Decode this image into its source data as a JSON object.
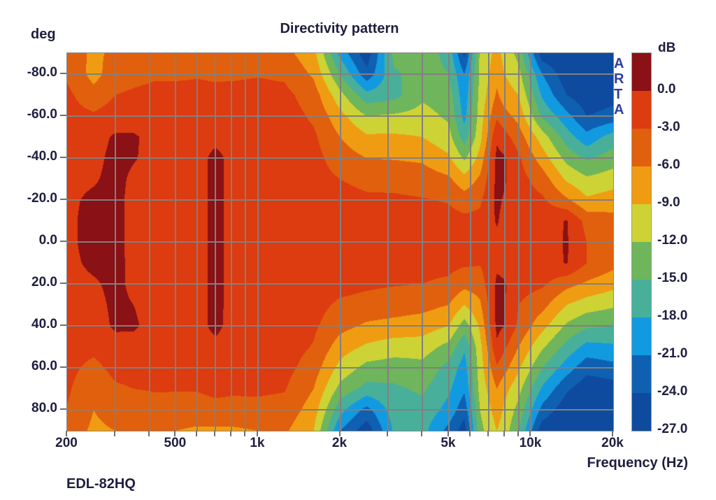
{
  "title": "Directivity pattern",
  "footer": "EDL-82HQ",
  "watermark": "ARTA",
  "y_axis": {
    "label": "deg",
    "ticks": [
      {
        "label": "-80.0",
        "deg": -80
      },
      {
        "label": "-60.0",
        "deg": -60
      },
      {
        "label": "-40.0",
        "deg": -40
      },
      {
        "label": "-20.0",
        "deg": -20
      },
      {
        "label": "0.0",
        "deg": 0
      },
      {
        "label": "20.0",
        "deg": 20
      },
      {
        "label": "40.0",
        "deg": 40
      },
      {
        "label": "60.0",
        "deg": 60
      },
      {
        "label": "80.0",
        "deg": 80
      }
    ]
  },
  "x_axis": {
    "label": "Frequency (Hz)",
    "ticks": [
      {
        "label": "200",
        "hz": 200
      },
      {
        "label": "500",
        "hz": 500
      },
      {
        "label": "1k",
        "hz": 1000
      },
      {
        "label": "2k",
        "hz": 2000
      },
      {
        "label": "5k",
        "hz": 5000
      },
      {
        "label": "10k",
        "hz": 10000
      },
      {
        "label": "20k",
        "hz": 20000
      }
    ],
    "gridline_freqs": [
      300,
      400,
      500,
      600,
      700,
      800,
      900,
      1000,
      2000,
      3000,
      4000,
      5000,
      6000,
      7000,
      8000,
      9000,
      10000
    ],
    "minor_tick_freqs": [
      200,
      300,
      400,
      500,
      600,
      700,
      800,
      900,
      1000,
      2000,
      3000,
      4000,
      5000,
      6000,
      7000,
      8000,
      9000,
      10000,
      20000
    ]
  },
  "y_gridline_degs": [
    -80,
    -60,
    -40,
    -20,
    0,
    20,
    40,
    60,
    80
  ],
  "colorbar": {
    "title": "dB",
    "labels": [
      "0.0",
      "-3.0",
      "-6.0",
      "-9.0",
      "-12.0",
      "-15.0",
      "-18.0",
      "-21.0",
      "-24.0",
      "-27.0"
    ]
  },
  "colors": {
    "grid": "#808080",
    "text": "#1e1e3f",
    "watermark_blue": "#2f3f9f",
    "palette": [
      "#8a1115",
      "#dd3b10",
      "#e0600e",
      "#f09c12",
      "#cdd334",
      "#6fb55c",
      "#48b09a",
      "#129ae1",
      "#1060b2",
      "#0e4b9e"
    ]
  },
  "chart_data": {
    "type": "heatmap",
    "title": "Directivity pattern",
    "xlabel": "Frequency (Hz)",
    "ylabel": "deg",
    "x_scale": "log",
    "x_range": [
      200,
      20000
    ],
    "y_range": [
      -90,
      90
    ],
    "levels_db": [
      0,
      -3,
      -6,
      -9,
      -12,
      -15,
      -18,
      -21,
      -24,
      -27
    ],
    "band_colors_desc": "bands top(>=0 dB dark red) to bottom(<=-24 dB navy), 3 dB steps",
    "x_hz": [
      200,
      250,
      300,
      350,
      420,
      500,
      600,
      700,
      800,
      1000,
      1250,
      1600,
      2000,
      2500,
      3150,
      4000,
      5000,
      5700,
      6500,
      7500,
      8000,
      9000,
      11000,
      13500,
      16000,
      20000
    ],
    "y_deg": [
      -90,
      -80,
      -70,
      -60,
      -50,
      -40,
      -30,
      -20,
      -10,
      0,
      10,
      20,
      30,
      40,
      50,
      60,
      70,
      80,
      90
    ],
    "values_db": [
      [
        -4.5,
        -6.5,
        -5.5,
        -5.0,
        -5.0,
        -5.5,
        -5.0,
        -5.0,
        -5.0,
        -4.5,
        -5.0,
        -8.0,
        -19,
        -26,
        -14,
        -13.5,
        -16,
        -25,
        -11.5,
        -8.0,
        -10,
        -13,
        -26,
        -27,
        -27,
        -27
      ],
      [
        -3.5,
        -7.0,
        -4.5,
        -4.0,
        -3.5,
        -3.5,
        -3.3,
        -3.5,
        -3.5,
        -3.2,
        -3.5,
        -6.5,
        -15,
        -23,
        -15.5,
        -13.5,
        -15,
        -21,
        -11.5,
        -7.0,
        -9.0,
        -11,
        -21,
        -26,
        -26.5,
        -26
      ],
      [
        -2.3,
        -5.0,
        -3.0,
        -2.5,
        -2.0,
        -2.0,
        -2.0,
        -2.2,
        -2.0,
        -2.0,
        -2.2,
        -4.5,
        -11,
        -17,
        -16,
        -12.5,
        -13.5,
        -20,
        -11,
        -5.5,
        -7.5,
        -9.0,
        -18.5,
        -24,
        -26,
        -25
      ],
      [
        -1.8,
        -2.5,
        -1.5,
        -1.2,
        -1.2,
        -1.3,
        -1.3,
        0.1,
        -1.2,
        -1.4,
        -1.6,
        -3.5,
        -8.0,
        -12,
        -11.5,
        -11,
        -12.5,
        -19,
        -10.5,
        -3.5,
        -5.0,
        -7.0,
        -15.5,
        -20,
        -24,
        -23
      ],
      [
        -1.4,
        -1.2,
        0.4,
        0.3,
        -0.8,
        -1.0,
        -1.0,
        -0.8,
        -1.0,
        -1.2,
        -1.4,
        -2.5,
        -6.0,
        -8.5,
        -8.5,
        -9.0,
        -11,
        -16.5,
        -10,
        -0.5,
        -2.0,
        -4.5,
        -10.5,
        -16.5,
        -20,
        -16.5
      ],
      [
        -1.0,
        -0.8,
        0.8,
        0.2,
        -0.8,
        -1.0,
        -1.0,
        0.8,
        -0.8,
        -1.2,
        -1.4,
        -2.0,
        -4.5,
        -6.0,
        -6.2,
        -6.5,
        -8.5,
        -12.5,
        -8.0,
        0.8,
        0.3,
        -2.5,
        -7.5,
        -13,
        -15.5,
        -13.5
      ],
      [
        -0.7,
        -0.3,
        0.8,
        -0.5,
        -0.8,
        -1.0,
        -1.0,
        0.8,
        -0.8,
        -1.2,
        -1.4,
        -1.8,
        -3.0,
        -3.8,
        -4.0,
        -4.5,
        -5.5,
        -8.0,
        -5.5,
        0.8,
        0.3,
        -1.8,
        -4.5,
        -9.5,
        -11.5,
        -10.5
      ],
      [
        -0.5,
        0.5,
        0.8,
        -0.8,
        -1.0,
        -1.2,
        -1.0,
        0.8,
        -0.8,
        -1.2,
        -1.4,
        -1.6,
        -2.0,
        -2.5,
        -2.5,
        -2.8,
        -3.2,
        -4.5,
        -3.5,
        0.6,
        -0.3,
        -1.5,
        -2.5,
        -5.5,
        -8.5,
        -7.5
      ],
      [
        -0.5,
        0.8,
        0.8,
        -0.8,
        -1.0,
        -1.2,
        -1.0,
        0.8,
        -0.8,
        -1.2,
        -1.4,
        -1.6,
        -1.8,
        -1.8,
        -1.8,
        -1.8,
        -2.0,
        -2.2,
        -2.2,
        0.3,
        -1.0,
        -1.5,
        -1.5,
        0.2,
        -4.0,
        -5.0
      ],
      [
        -0.5,
        0.8,
        0.8,
        -0.8,
        -1.0,
        -1.2,
        -1.0,
        0.8,
        -0.8,
        -1.2,
        -1.4,
        -1.6,
        -1.8,
        -1.8,
        -1.8,
        -1.8,
        -1.8,
        -1.8,
        -2.0,
        -0.8,
        -1.2,
        -1.5,
        -1.5,
        0.3,
        -3.0,
        -4.2
      ],
      [
        -0.6,
        0.5,
        0.8,
        -0.7,
        -1.0,
        -1.2,
        -1.0,
        0.8,
        -0.8,
        -1.2,
        -1.4,
        -1.6,
        -1.8,
        -2.0,
        -2.0,
        -2.2,
        -2.2,
        -2.5,
        -2.8,
        -0.5,
        -0.8,
        -1.5,
        -1.5,
        0.2,
        -3.0,
        -5.0
      ],
      [
        -0.8,
        -0.3,
        0.6,
        -0.5,
        -0.8,
        -1.0,
        -1.0,
        0.8,
        -0.8,
        -1.2,
        -1.4,
        -1.8,
        -2.0,
        -2.5,
        -2.8,
        -3.0,
        -3.5,
        -5.0,
        -4.5,
        0.5,
        0.2,
        -1.8,
        -2.5,
        -5.0,
        -6.5,
        -8.0
      ],
      [
        -1.0,
        -0.8,
        0.5,
        0.0,
        -0.8,
        -1.0,
        -1.0,
        0.8,
        -0.8,
        -1.2,
        -1.4,
        -2.0,
        -3.5,
        -4.0,
        -4.5,
        -5.0,
        -6.0,
        -9.0,
        -6.5,
        0.8,
        0.3,
        -3.0,
        -5.0,
        -9.0,
        -10.5,
        -11.5
      ],
      [
        -1.3,
        -1.2,
        0.4,
        0.3,
        -0.8,
        -1.0,
        -1.0,
        0.8,
        -1.0,
        -1.2,
        -1.4,
        -2.5,
        -5.0,
        -6.5,
        -7.0,
        -7.5,
        -9.0,
        -13.5,
        -8.5,
        0.8,
        0.0,
        -3.5,
        -8.0,
        -12.5,
        -14.5,
        -15
      ],
      [
        -1.6,
        -2.0,
        -1.0,
        -0.8,
        -1.2,
        -1.3,
        -1.3,
        -0.8,
        -1.2,
        -1.4,
        -1.6,
        -3.2,
        -7.5,
        -9.5,
        -10.5,
        -10.5,
        -13,
        -17.5,
        -10,
        -0.5,
        -2.5,
        -6.0,
        -11.5,
        -16,
        -19,
        -18.5
      ],
      [
        -2.0,
        -4.0,
        -2.0,
        -1.8,
        -1.8,
        -1.8,
        -1.8,
        0.1,
        -1.5,
        -1.8,
        -2.0,
        -4.5,
        -10,
        -13,
        -13.5,
        -13,
        -16,
        -19.5,
        -10.5,
        -3.5,
        -5.0,
        -8.5,
        -15,
        -19.5,
        -23,
        -22
      ],
      [
        -2.5,
        -5.5,
        -3.5,
        -3.0,
        -2.8,
        -2.8,
        -2.8,
        -2.2,
        -2.5,
        -2.5,
        -2.8,
        -6.0,
        -13,
        -16,
        -15.5,
        -14.5,
        -17.5,
        -20.5,
        -11,
        -6.0,
        -8.0,
        -11,
        -18.5,
        -23.5,
        -26,
        -25.5
      ],
      [
        -3.2,
        -6.0,
        -5.0,
        -4.5,
        -4.0,
        -4.2,
        -4.2,
        -4.0,
        -4.0,
        -3.8,
        -4.0,
        -7.5,
        -17,
        -22,
        -16.5,
        -16,
        -19,
        -23,
        -12,
        -7.5,
        -9.5,
        -13,
        -22,
        -26,
        -27,
        -27.5
      ],
      [
        -4.5,
        -6.5,
        -6.0,
        -5.5,
        -5.5,
        -6.0,
        -6.5,
        -6.5,
        -6.5,
        -6.0,
        -5.5,
        -9.0,
        -21,
        -26,
        -17.5,
        -17,
        -22,
        -25.5,
        -13,
        -9.0,
        -10.5,
        -15,
        -26,
        -27,
        -28,
        -28
      ]
    ]
  }
}
